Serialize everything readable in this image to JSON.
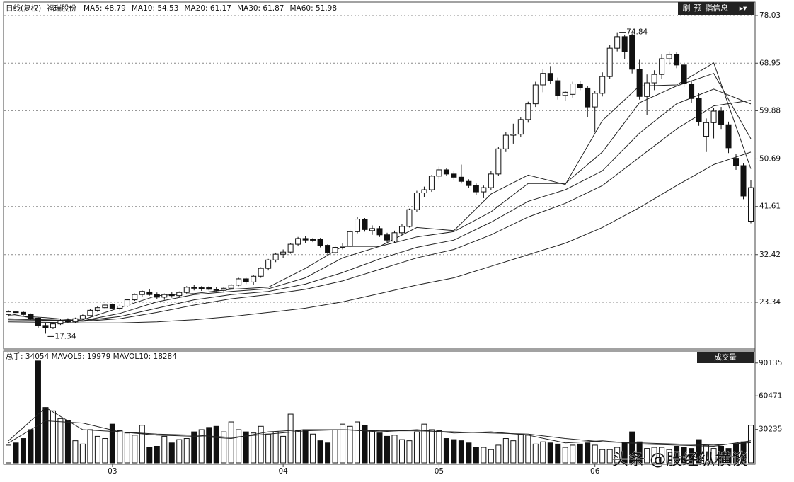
{
  "chart_data": {
    "type": "candlestick",
    "title": "日线(复权)",
    "stock_name": "福瑞股份",
    "ma_legend": [
      "MA5: 48.79",
      "MA10: 54.53",
      "MA20: 61.17",
      "MA30: 61.87",
      "MA60: 51.98"
    ],
    "toolbar": [
      "刷",
      "预",
      "指",
      "信息"
    ],
    "ylim": [
      14.56,
      80.33
    ],
    "yticks": [
      23.34,
      32.42,
      41.61,
      50.69,
      59.88,
      68.95,
      78.03
    ],
    "months": [
      {
        "index": 14,
        "label": "03"
      },
      {
        "index": 37,
        "label": "04"
      },
      {
        "index": 58,
        "label": "05"
      },
      {
        "index": 79,
        "label": "06"
      }
    ],
    "candles": [
      [
        21.0,
        21.8,
        20.6,
        21.5
      ],
      [
        21.5,
        21.9,
        21.0,
        21.4
      ],
      [
        21.4,
        21.6,
        20.8,
        21.0
      ],
      [
        21.0,
        21.2,
        20.0,
        20.3
      ],
      [
        20.3,
        20.4,
        18.5,
        18.9
      ],
      [
        18.9,
        19.3,
        17.34,
        18.5
      ],
      [
        18.5,
        19.4,
        18.2,
        19.2
      ],
      [
        19.2,
        20.1,
        19.0,
        19.8
      ],
      [
        19.8,
        20.3,
        19.4,
        19.6
      ],
      [
        19.6,
        20.4,
        19.3,
        20.2
      ],
      [
        20.2,
        21.0,
        20.0,
        20.8
      ],
      [
        20.8,
        22.0,
        20.6,
        21.8
      ],
      [
        21.8,
        22.6,
        21.5,
        22.3
      ],
      [
        22.3,
        23.0,
        22.0,
        22.8
      ],
      [
        22.9,
        23.1,
        22.0,
        22.2
      ],
      [
        22.2,
        22.9,
        21.8,
        22.6
      ],
      [
        22.6,
        24.0,
        22.4,
        23.8
      ],
      [
        23.8,
        25.0,
        23.6,
        24.8
      ],
      [
        24.8,
        25.6,
        24.4,
        25.4
      ],
      [
        25.3,
        25.8,
        24.6,
        24.8
      ],
      [
        24.8,
        25.2,
        24.0,
        24.3
      ],
      [
        24.3,
        25.0,
        23.8,
        24.8
      ],
      [
        24.8,
        25.3,
        24.2,
        24.6
      ],
      [
        24.6,
        25.4,
        24.3,
        25.2
      ],
      [
        25.2,
        26.4,
        25.0,
        26.2
      ],
      [
        26.2,
        26.6,
        25.6,
        26.0
      ],
      [
        26.0,
        26.4,
        25.5,
        26.1
      ],
      [
        26.1,
        26.4,
        25.6,
        25.8
      ],
      [
        25.8,
        26.2,
        25.4,
        25.6
      ],
      [
        25.6,
        26.2,
        25.2,
        26.0
      ],
      [
        26.0,
        26.8,
        25.8,
        26.6
      ],
      [
        26.6,
        28.0,
        26.4,
        27.8
      ],
      [
        27.8,
        28.0,
        26.8,
        27.2
      ],
      [
        27.2,
        28.6,
        26.6,
        28.3
      ],
      [
        28.3,
        30.0,
        28.0,
        29.8
      ],
      [
        29.8,
        31.6,
        29.4,
        31.4
      ],
      [
        31.4,
        32.8,
        31.0,
        32.5
      ],
      [
        32.5,
        33.4,
        31.8,
        32.9
      ],
      [
        32.9,
        34.6,
        32.6,
        34.4
      ],
      [
        34.4,
        35.8,
        34.0,
        35.5
      ],
      [
        35.5,
        35.9,
        34.6,
        35.2
      ],
      [
        35.2,
        35.6,
        34.8,
        35.3
      ],
      [
        35.3,
        35.6,
        33.8,
        34.2
      ],
      [
        34.2,
        34.4,
        32.4,
        32.8
      ],
      [
        32.8,
        34.2,
        32.4,
        33.8
      ],
      [
        33.8,
        34.6,
        33.4,
        34.0
      ],
      [
        34.0,
        37.2,
        33.8,
        36.8
      ],
      [
        36.8,
        39.6,
        36.5,
        39.2
      ],
      [
        39.2,
        39.4,
        36.8,
        37.2
      ],
      [
        37.0,
        38.0,
        36.2,
        37.4
      ],
      [
        37.4,
        37.8,
        35.8,
        36.2
      ],
      [
        36.2,
        36.6,
        34.8,
        35.2
      ],
      [
        35.0,
        37.0,
        34.6,
        36.6
      ],
      [
        36.6,
        38.2,
        36.2,
        37.8
      ],
      [
        37.8,
        41.2,
        37.6,
        41.0
      ],
      [
        41.0,
        44.6,
        40.6,
        44.2
      ],
      [
        44.2,
        45.4,
        43.4,
        44.8
      ],
      [
        44.8,
        47.6,
        44.4,
        47.4
      ],
      [
        47.4,
        49.2,
        46.8,
        48.6
      ],
      [
        48.6,
        49.0,
        47.4,
        47.8
      ],
      [
        47.8,
        48.4,
        46.6,
        47.2
      ],
      [
        47.2,
        49.6,
        46.0,
        46.4
      ],
      [
        46.4,
        46.8,
        45.2,
        45.6
      ],
      [
        45.6,
        46.0,
        43.8,
        44.4
      ],
      [
        44.4,
        45.6,
        43.2,
        45.2
      ],
      [
        45.2,
        48.4,
        44.8,
        47.8
      ],
      [
        47.8,
        53.0,
        47.4,
        52.6
      ],
      [
        52.6,
        55.8,
        52.0,
        55.2
      ],
      [
        55.2,
        57.4,
        53.6,
        55.4
      ],
      [
        55.4,
        58.6,
        54.8,
        58.2
      ],
      [
        58.2,
        61.6,
        57.6,
        61.2
      ],
      [
        61.2,
        65.4,
        60.6,
        64.8
      ],
      [
        64.8,
        67.8,
        63.4,
        67.0
      ],
      [
        67.0,
        68.4,
        65.0,
        65.6
      ],
      [
        65.6,
        66.2,
        62.0,
        62.8
      ],
      [
        62.8,
        63.6,
        61.8,
        63.4
      ],
      [
        63.0,
        65.4,
        62.4,
        65.0
      ],
      [
        65.0,
        65.6,
        63.8,
        64.2
      ],
      [
        64.2,
        64.6,
        58.6,
        60.6
      ],
      [
        60.6,
        63.6,
        55.8,
        63.2
      ],
      [
        63.2,
        67.2,
        62.6,
        66.4
      ],
      [
        66.4,
        72.4,
        66.0,
        71.8
      ],
      [
        71.8,
        74.84,
        71.2,
        74.0
      ],
      [
        74.0,
        74.4,
        69.8,
        71.2
      ],
      [
        74.2,
        74.6,
        67.0,
        67.8
      ],
      [
        67.8,
        69.6,
        62.0,
        62.6
      ],
      [
        62.6,
        66.8,
        59.0,
        65.2
      ],
      [
        65.2,
        67.6,
        63.8,
        66.8
      ],
      [
        66.8,
        70.6,
        66.0,
        69.8
      ],
      [
        69.8,
        71.2,
        68.6,
        70.6
      ],
      [
        70.6,
        71.0,
        68.0,
        68.6
      ],
      [
        68.6,
        68.8,
        64.4,
        65.0
      ],
      [
        65.0,
        65.6,
        61.4,
        62.2
      ],
      [
        62.2,
        63.2,
        57.0,
        57.8
      ],
      [
        55.0,
        58.4,
        52.0,
        57.6
      ],
      [
        57.6,
        60.4,
        54.6,
        59.8
      ],
      [
        59.8,
        60.6,
        56.4,
        57.2
      ],
      [
        57.2,
        57.8,
        51.8,
        52.8
      ],
      [
        50.8,
        51.6,
        48.6,
        49.4
      ],
      [
        49.4,
        49.8,
        43.0,
        43.6
      ],
      [
        38.8,
        46.6,
        38.4,
        45.2
      ]
    ],
    "ma_index": [
      0,
      5,
      10,
      15,
      20,
      25,
      30,
      35,
      40,
      45,
      50,
      55,
      60,
      65,
      70,
      75,
      80,
      85,
      90,
      95,
      100
    ],
    "ma_series": [
      {
        "name": "MA5",
        "values": [
          21.2,
          19.8,
          20.0,
          22.3,
          24.6,
          25.0,
          25.8,
          26.2,
          29.8,
          34.0,
          34.0,
          37.6,
          37.0,
          44.0,
          47.6,
          45.8,
          58.0,
          64.6,
          64.8,
          69.0,
          48.79
        ]
      },
      {
        "name": "MA10",
        "values": [
          20.8,
          20.4,
          19.8,
          21.2,
          23.4,
          24.8,
          25.4,
          25.9,
          28.0,
          31.8,
          34.0,
          35.8,
          36.8,
          40.6,
          46.0,
          46.0,
          52.0,
          61.4,
          64.6,
          67.0,
          54.53
        ]
      },
      {
        "name": "MA20",
        "values": [
          20.2,
          20.0,
          19.8,
          20.6,
          22.2,
          23.8,
          24.8,
          25.4,
          26.8,
          29.0,
          31.6,
          33.8,
          35.2,
          38.6,
          42.6,
          44.8,
          48.4,
          55.6,
          61.2,
          64.0,
          61.17
        ]
      },
      {
        "name": "MA30",
        "values": [
          20.0,
          19.9,
          19.7,
          20.2,
          21.4,
          22.8,
          24.0,
          24.8,
          25.8,
          27.4,
          29.6,
          31.8,
          33.4,
          36.2,
          39.6,
          42.2,
          45.6,
          51.0,
          56.4,
          60.8,
          61.87
        ]
      },
      {
        "name": "MA60",
        "values": [
          19.6,
          19.5,
          19.4,
          19.4,
          19.6,
          20.0,
          20.6,
          21.4,
          22.2,
          23.4,
          25.0,
          26.6,
          28.0,
          30.2,
          32.4,
          34.6,
          37.6,
          41.4,
          45.6,
          49.6,
          51.98
        ]
      }
    ],
    "volume_legend": "总手: 34054 MAVOL5: 19979 MAVOL10: 18284",
    "volume_title": "成交量",
    "vlim": [
      0,
      100200
    ],
    "vticks": [
      30235,
      60471,
      90135
    ],
    "volume": [
      16000,
      18000,
      22000,
      30000,
      92000,
      50000,
      47000,
      40000,
      38000,
      20000,
      17000,
      30000,
      24000,
      22000,
      35000,
      29000,
      27000,
      25000,
      34000,
      14000,
      15000,
      24000,
      18000,
      21000,
      22000,
      28000,
      30000,
      32000,
      33000,
      28000,
      37000,
      30000,
      28000,
      27000,
      33000,
      26000,
      28000,
      24000,
      44000,
      29000,
      30000,
      26000,
      20000,
      18000,
      30000,
      35000,
      33000,
      37000,
      34000,
      29000,
      27000,
      24000,
      25000,
      21000,
      20000,
      28000,
      35000,
      30000,
      29000,
      22000,
      21000,
      20000,
      18000,
      14000,
      14000,
      12000,
      16000,
      22000,
      20000,
      26000,
      25000,
      17000,
      19000,
      18000,
      17000,
      14000,
      16000,
      17000,
      18000,
      16000,
      12000,
      12000,
      14000,
      18000,
      28000,
      19000,
      13000,
      14000,
      14000,
      12000,
      15000,
      14000,
      13000,
      21000,
      16000,
      13000,
      15000,
      13000,
      17000,
      19000,
      34054
    ],
    "vma_series": [
      {
        "name": "MAVOL5",
        "values": [
          20000,
          50000,
          30000,
          28000,
          25000,
          24000,
          22000,
          28000,
          30000,
          30000,
          28000,
          30000,
          27000,
          28000,
          25000,
          18000,
          20000,
          17000,
          16000,
          15000,
          19979
        ]
      },
      {
        "name": "MAVOL10",
        "values": [
          18000,
          38000,
          36000,
          28000,
          26000,
          25000,
          23000,
          26000,
          29000,
          30000,
          29000,
          29000,
          28000,
          27000,
          26000,
          22000,
          19000,
          18000,
          17000,
          16000,
          18284
        ]
      }
    ],
    "watermark": "头条 @股经纵横谈"
  }
}
